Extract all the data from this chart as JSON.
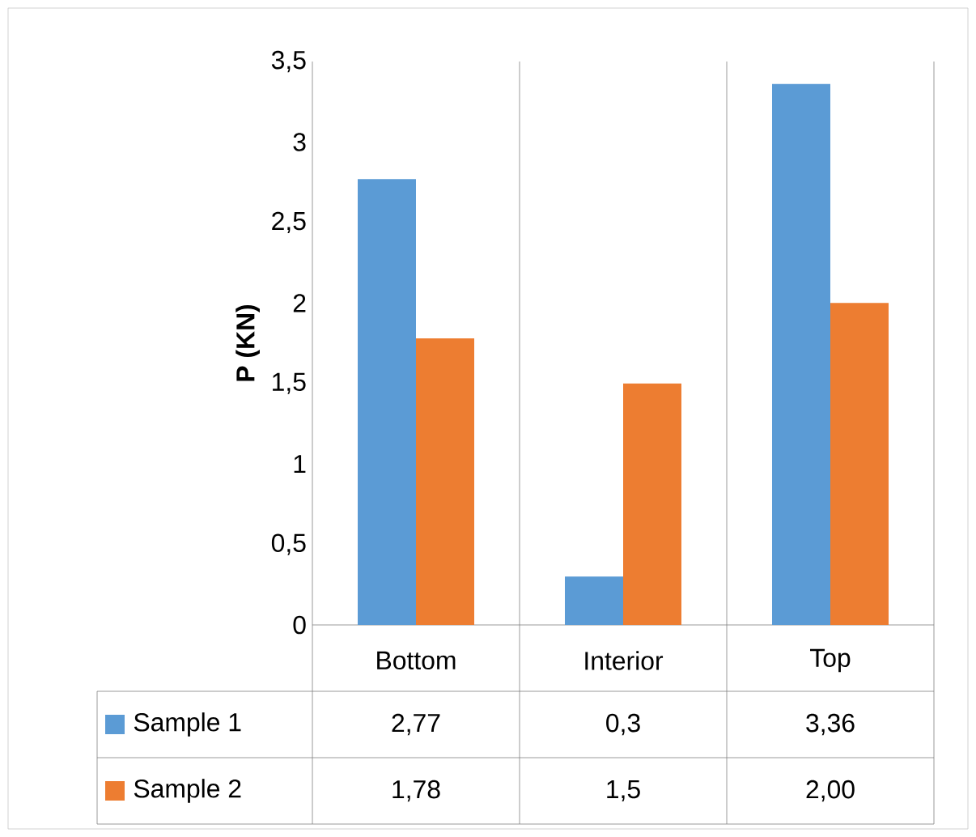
{
  "chart_data": {
    "type": "bar",
    "ylabel": "P (KN)",
    "categories": [
      "Bottom",
      "Interior",
      "Top"
    ],
    "series": [
      {
        "name": "Sample 1",
        "color": "#5b9bd5",
        "values": [
          2.77,
          0.3,
          3.36
        ],
        "value_labels": [
          "2,77",
          "0,3",
          "3,36"
        ]
      },
      {
        "name": "Sample 2",
        "color": "#ed7d31",
        "values": [
          1.78,
          1.5,
          2.0
        ],
        "value_labels": [
          "1,78",
          "1,5",
          "2,00"
        ]
      }
    ],
    "ylim": [
      0,
      3.5
    ],
    "yticks": [
      0,
      {
        "value": 0.5,
        "label": "0,5"
      },
      1,
      {
        "value": 1.5,
        "label": "1,5"
      },
      2,
      {
        "value": 2.5,
        "label": "2,5"
      },
      3,
      {
        "value": 3.5,
        "label": "3,5"
      }
    ],
    "grid": false,
    "legend": "bottom"
  }
}
